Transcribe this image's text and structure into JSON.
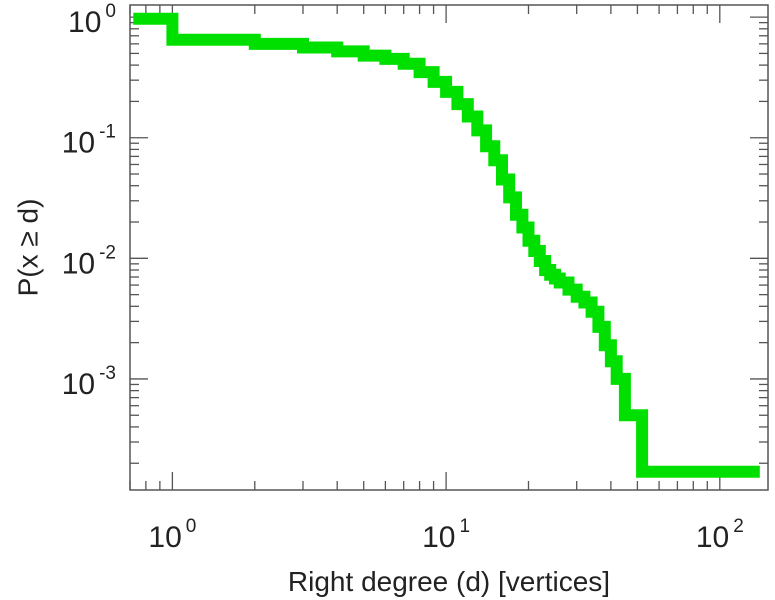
{
  "chart_data": {
    "type": "line",
    "step": true,
    "xscale": "log",
    "yscale": "log",
    "xlabel": "Right degree (d) [vertices]",
    "ylabel": "P(x ≥ d)",
    "xlim": [
      0.7,
      150
    ],
    "ylim": [
      0.00012,
      1.26
    ],
    "grid": false,
    "line_color": "#00e000",
    "x_ticks": [
      {
        "value": 1,
        "base": "10",
        "exp": "0"
      },
      {
        "value": 10,
        "base": "10",
        "exp": "1"
      },
      {
        "value": 100,
        "base": "10",
        "exp": "2"
      }
    ],
    "y_ticks": [
      {
        "value": 1,
        "base": "10",
        "exp": "0"
      },
      {
        "value": 0.1,
        "base": "10",
        "exp": "-1"
      },
      {
        "value": 0.01,
        "base": "10",
        "exp": "-2"
      },
      {
        "value": 0.001,
        "base": "10",
        "exp": "-3"
      }
    ],
    "series": [
      {
        "x": [
          0.72,
          1,
          2,
          3,
          4,
          5,
          6,
          7,
          8,
          9,
          10,
          11,
          12,
          13,
          14,
          15,
          16,
          17,
          18,
          19,
          20,
          21,
          22,
          23,
          24,
          25,
          26,
          28,
          30,
          32,
          34,
          36,
          38,
          40,
          42,
          45,
          52,
          140
        ],
        "y": [
          0.97,
          0.65,
          0.6,
          0.56,
          0.52,
          0.48,
          0.45,
          0.41,
          0.35,
          0.29,
          0.24,
          0.19,
          0.15,
          0.115,
          0.085,
          0.065,
          0.045,
          0.032,
          0.023,
          0.018,
          0.014,
          0.0115,
          0.0095,
          0.008,
          0.0073,
          0.0068,
          0.0063,
          0.0055,
          0.0048,
          0.0043,
          0.0036,
          0.0027,
          0.0019,
          0.0014,
          0.001,
          0.0005,
          0.00017,
          0.00017
        ]
      }
    ]
  }
}
